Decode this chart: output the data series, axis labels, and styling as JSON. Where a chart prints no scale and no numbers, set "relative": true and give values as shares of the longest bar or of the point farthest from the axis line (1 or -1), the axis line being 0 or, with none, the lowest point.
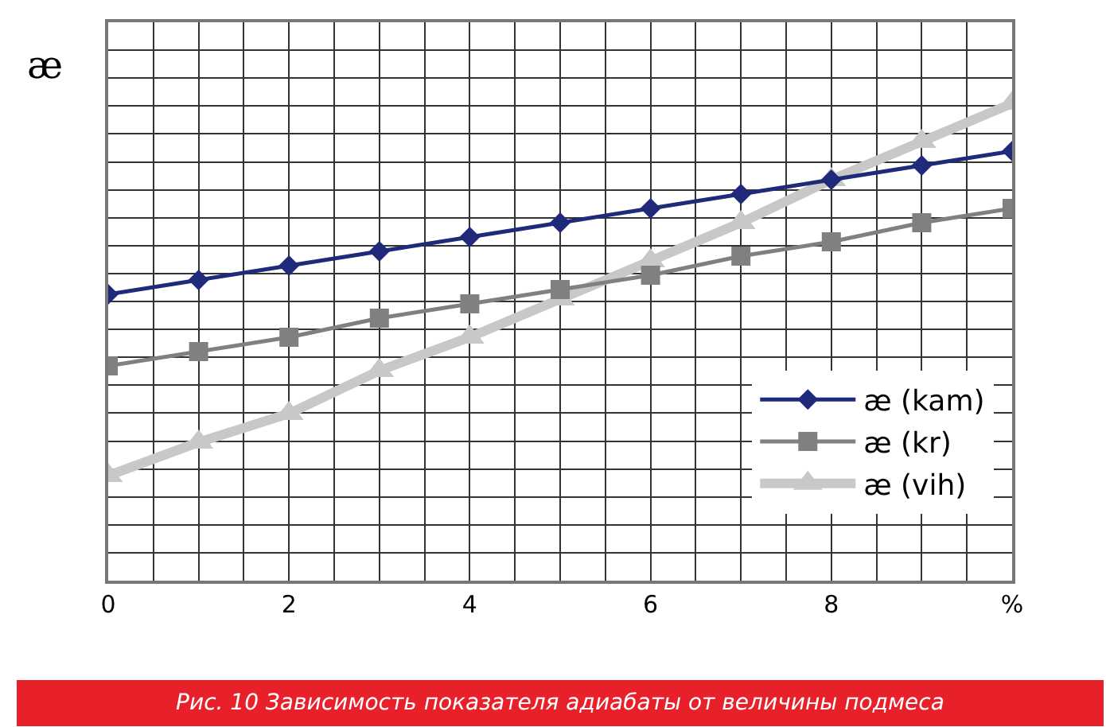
{
  "chart_data": {
    "type": "line",
    "relative": true,
    "ylabel": "æ",
    "x": [
      0,
      1,
      2,
      3,
      4,
      5,
      6,
      7,
      8,
      9,
      10
    ],
    "xlim": [
      0,
      10
    ],
    "xticks": [
      0,
      2,
      4,
      6,
      8,
      {
        "value": 10,
        "label": "%"
      }
    ],
    "grid": true,
    "legend": "bottom right",
    "series": [
      {
        "name": "æ (kam)",
        "color": "#1f2a7a",
        "marker": "diamond",
        "values": [
          0.6,
          0.63,
          0.66,
          0.69,
          0.72,
          0.75,
          0.78,
          0.81,
          0.84,
          0.87,
          0.9
        ]
      },
      {
        "name": "æ (kr)",
        "color": "#7f8080",
        "marker": "square",
        "values": [
          0.45,
          0.48,
          0.51,
          0.55,
          0.58,
          0.61,
          0.64,
          0.68,
          0.71,
          0.75,
          0.78
        ]
      },
      {
        "name": "æ (vih)",
        "color": "#c8c8c8",
        "marker": "triangle",
        "values": [
          0.22,
          0.29,
          0.35,
          0.44,
          0.51,
          0.59,
          0.67,
          0.75,
          0.84,
          0.92,
          1.0
        ]
      }
    ],
    "annotations": [
      "Рис. 10 Зависимость показателя адиабаты от величины подмеса"
    ]
  }
}
